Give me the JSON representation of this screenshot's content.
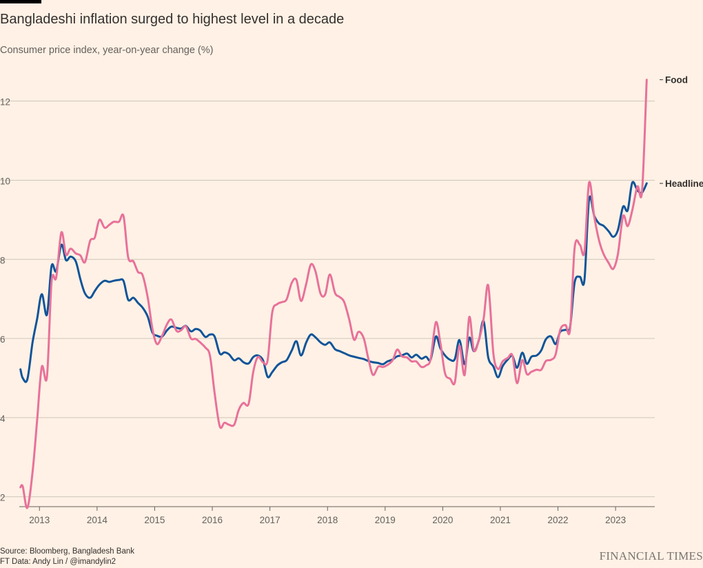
{
  "title": "Bangladeshi inflation surged to highest level in a decade",
  "subtitle": "Consumer price index, year-on-year change (%)",
  "footer": {
    "source": "Source: Bloomberg, Bangladesh Bank",
    "credit": "FT Data: Andy Lin / @imandylin2"
  },
  "brand": "FINANCIAL TIMES",
  "chart_data": {
    "type": "line",
    "title": "Bangladeshi inflation surged to highest level in a decade",
    "subtitle": "Consumer price index, year-on-year change (%)",
    "xlabel": "",
    "ylabel": "",
    "xlim": [
      2012.65,
      2023.68
    ],
    "ylim": [
      1.75,
      12.9
    ],
    "y_ticks": [
      2,
      4,
      6,
      8,
      10,
      12
    ],
    "x_ticks": [
      2013,
      2014,
      2015,
      2016,
      2017,
      2018,
      2019,
      2020,
      2021,
      2022,
      2023
    ],
    "grid": "horizontal",
    "legend": "direct labels at line ends (right)",
    "colors": {
      "Headline": "#0f5499",
      "Food": "#e8719a",
      "grid": "#cec6b9",
      "axis": "#66605c",
      "background": "#fff1e5"
    },
    "series": [
      {
        "name": "Headline",
        "points": [
          [
            2012.67,
            5.22
          ],
          [
            2012.71,
            5.0
          ],
          [
            2012.79,
            4.97
          ],
          [
            2012.88,
            5.9
          ],
          [
            2012.96,
            6.5
          ],
          [
            2013.04,
            7.12
          ],
          [
            2013.13,
            6.6
          ],
          [
            2013.21,
            7.83
          ],
          [
            2013.29,
            7.7
          ],
          [
            2013.38,
            8.37
          ],
          [
            2013.46,
            7.98
          ],
          [
            2013.54,
            8.07
          ],
          [
            2013.63,
            7.95
          ],
          [
            2013.71,
            7.5
          ],
          [
            2013.79,
            7.14
          ],
          [
            2013.88,
            7.03
          ],
          [
            2013.96,
            7.2
          ],
          [
            2014.04,
            7.36
          ],
          [
            2014.13,
            7.46
          ],
          [
            2014.21,
            7.43
          ],
          [
            2014.29,
            7.46
          ],
          [
            2014.38,
            7.48
          ],
          [
            2014.46,
            7.45
          ],
          [
            2014.54,
            6.98
          ],
          [
            2014.63,
            7.03
          ],
          [
            2014.71,
            6.9
          ],
          [
            2014.79,
            6.78
          ],
          [
            2014.88,
            6.55
          ],
          [
            2014.96,
            6.15
          ],
          [
            2015.04,
            6.07
          ],
          [
            2015.13,
            6.05
          ],
          [
            2015.21,
            6.2
          ],
          [
            2015.29,
            6.3
          ],
          [
            2015.38,
            6.27
          ],
          [
            2015.46,
            6.25
          ],
          [
            2015.54,
            6.32
          ],
          [
            2015.63,
            6.18
          ],
          [
            2015.71,
            6.24
          ],
          [
            2015.79,
            6.2
          ],
          [
            2015.88,
            6.04
          ],
          [
            2015.96,
            6.1
          ],
          [
            2016.04,
            6.05
          ],
          [
            2016.13,
            5.62
          ],
          [
            2016.21,
            5.65
          ],
          [
            2016.29,
            5.6
          ],
          [
            2016.38,
            5.45
          ],
          [
            2016.46,
            5.5
          ],
          [
            2016.54,
            5.4
          ],
          [
            2016.63,
            5.37
          ],
          [
            2016.71,
            5.53
          ],
          [
            2016.79,
            5.57
          ],
          [
            2016.88,
            5.45
          ],
          [
            2016.96,
            5.03
          ],
          [
            2017.04,
            5.15
          ],
          [
            2017.13,
            5.32
          ],
          [
            2017.21,
            5.4
          ],
          [
            2017.29,
            5.45
          ],
          [
            2017.38,
            5.7
          ],
          [
            2017.46,
            5.93
          ],
          [
            2017.54,
            5.57
          ],
          [
            2017.63,
            5.9
          ],
          [
            2017.71,
            6.1
          ],
          [
            2017.79,
            6.03
          ],
          [
            2017.88,
            5.9
          ],
          [
            2017.96,
            5.84
          ],
          [
            2018.04,
            5.9
          ],
          [
            2018.13,
            5.73
          ],
          [
            2018.21,
            5.68
          ],
          [
            2018.29,
            5.63
          ],
          [
            2018.38,
            5.57
          ],
          [
            2018.46,
            5.54
          ],
          [
            2018.54,
            5.51
          ],
          [
            2018.63,
            5.48
          ],
          [
            2018.71,
            5.43
          ],
          [
            2018.79,
            5.4
          ],
          [
            2018.88,
            5.38
          ],
          [
            2018.96,
            5.35
          ],
          [
            2019.04,
            5.42
          ],
          [
            2019.13,
            5.47
          ],
          [
            2019.21,
            5.55
          ],
          [
            2019.29,
            5.57
          ],
          [
            2019.38,
            5.62
          ],
          [
            2019.46,
            5.52
          ],
          [
            2019.54,
            5.59
          ],
          [
            2019.63,
            5.49
          ],
          [
            2019.71,
            5.54
          ],
          [
            2019.79,
            5.47
          ],
          [
            2019.88,
            6.05
          ],
          [
            2019.96,
            5.75
          ],
          [
            2020.04,
            5.57
          ],
          [
            2020.13,
            5.46
          ],
          [
            2020.21,
            5.48
          ],
          [
            2020.29,
            5.96
          ],
          [
            2020.38,
            5.35
          ],
          [
            2020.46,
            6.02
          ],
          [
            2020.54,
            5.68
          ],
          [
            2020.63,
            5.97
          ],
          [
            2020.71,
            6.44
          ],
          [
            2020.79,
            5.52
          ],
          [
            2020.88,
            5.29
          ],
          [
            2020.96,
            5.02
          ],
          [
            2021.04,
            5.3
          ],
          [
            2021.13,
            5.47
          ],
          [
            2021.21,
            5.56
          ],
          [
            2021.29,
            5.26
          ],
          [
            2021.38,
            5.64
          ],
          [
            2021.46,
            5.36
          ],
          [
            2021.54,
            5.54
          ],
          [
            2021.63,
            5.57
          ],
          [
            2021.71,
            5.7
          ],
          [
            2021.79,
            5.98
          ],
          [
            2021.88,
            6.05
          ],
          [
            2021.96,
            5.86
          ],
          [
            2022.04,
            6.17
          ],
          [
            2022.13,
            6.22
          ],
          [
            2022.21,
            6.29
          ],
          [
            2022.29,
            7.42
          ],
          [
            2022.38,
            7.56
          ],
          [
            2022.46,
            7.48
          ],
          [
            2022.54,
            9.52
          ],
          [
            2022.63,
            9.1
          ],
          [
            2022.71,
            8.91
          ],
          [
            2022.79,
            8.85
          ],
          [
            2022.88,
            8.71
          ],
          [
            2022.96,
            8.57
          ],
          [
            2023.04,
            8.74
          ],
          [
            2023.13,
            9.33
          ],
          [
            2023.21,
            9.24
          ],
          [
            2023.29,
            9.94
          ],
          [
            2023.38,
            9.74
          ],
          [
            2023.46,
            9.69
          ],
          [
            2023.54,
            9.92
          ]
        ]
      },
      {
        "name": "Food",
        "points": [
          [
            2012.67,
            2.24
          ],
          [
            2012.71,
            2.26
          ],
          [
            2012.79,
            1.72
          ],
          [
            2012.88,
            2.62
          ],
          [
            2012.96,
            3.94
          ],
          [
            2013.04,
            5.28
          ],
          [
            2013.13,
            5.03
          ],
          [
            2013.21,
            7.44
          ],
          [
            2013.29,
            7.54
          ],
          [
            2013.38,
            8.68
          ],
          [
            2013.46,
            8.12
          ],
          [
            2013.54,
            8.27
          ],
          [
            2013.63,
            8.15
          ],
          [
            2013.71,
            8.1
          ],
          [
            2013.79,
            7.93
          ],
          [
            2013.88,
            8.47
          ],
          [
            2013.96,
            8.55
          ],
          [
            2014.04,
            9.0
          ],
          [
            2014.13,
            8.8
          ],
          [
            2014.21,
            8.87
          ],
          [
            2014.29,
            8.95
          ],
          [
            2014.38,
            8.95
          ],
          [
            2014.46,
            9.09
          ],
          [
            2014.54,
            8.05
          ],
          [
            2014.63,
            7.95
          ],
          [
            2014.71,
            7.68
          ],
          [
            2014.79,
            7.6
          ],
          [
            2014.88,
            7.03
          ],
          [
            2014.96,
            6.25
          ],
          [
            2015.04,
            5.86
          ],
          [
            2015.13,
            6.07
          ],
          [
            2015.21,
            6.35
          ],
          [
            2015.29,
            6.48
          ],
          [
            2015.38,
            6.19
          ],
          [
            2015.46,
            6.21
          ],
          [
            2015.54,
            6.31
          ],
          [
            2015.63,
            6.0
          ],
          [
            2015.71,
            5.99
          ],
          [
            2015.79,
            5.9
          ],
          [
            2015.88,
            5.77
          ],
          [
            2015.96,
            5.56
          ],
          [
            2016.04,
            4.62
          ],
          [
            2016.13,
            3.78
          ],
          [
            2016.21,
            3.87
          ],
          [
            2016.29,
            3.82
          ],
          [
            2016.38,
            3.82
          ],
          [
            2016.46,
            4.2
          ],
          [
            2016.54,
            4.37
          ],
          [
            2016.63,
            4.35
          ],
          [
            2016.71,
            5.15
          ],
          [
            2016.79,
            5.53
          ],
          [
            2016.88,
            5.4
          ],
          [
            2016.96,
            5.45
          ],
          [
            2017.04,
            6.66
          ],
          [
            2017.13,
            6.87
          ],
          [
            2017.21,
            6.92
          ],
          [
            2017.29,
            6.99
          ],
          [
            2017.38,
            7.41
          ],
          [
            2017.46,
            7.48
          ],
          [
            2017.54,
            6.95
          ],
          [
            2017.63,
            7.38
          ],
          [
            2017.71,
            7.87
          ],
          [
            2017.79,
            7.7
          ],
          [
            2017.88,
            7.13
          ],
          [
            2017.96,
            7.12
          ],
          [
            2018.04,
            7.62
          ],
          [
            2018.13,
            7.15
          ],
          [
            2018.21,
            7.05
          ],
          [
            2018.29,
            6.92
          ],
          [
            2018.38,
            6.46
          ],
          [
            2018.46,
            5.97
          ],
          [
            2018.54,
            6.17
          ],
          [
            2018.63,
            6.0
          ],
          [
            2018.71,
            5.48
          ],
          [
            2018.79,
            5.08
          ],
          [
            2018.88,
            5.29
          ],
          [
            2018.96,
            5.28
          ],
          [
            2019.04,
            5.33
          ],
          [
            2019.13,
            5.45
          ],
          [
            2019.21,
            5.72
          ],
          [
            2019.29,
            5.55
          ],
          [
            2019.38,
            5.52
          ],
          [
            2019.46,
            5.42
          ],
          [
            2019.54,
            5.42
          ],
          [
            2019.63,
            5.28
          ],
          [
            2019.71,
            5.32
          ],
          [
            2019.79,
            5.48
          ],
          [
            2019.88,
            6.41
          ],
          [
            2019.96,
            5.88
          ],
          [
            2020.04,
            5.12
          ],
          [
            2020.13,
            4.98
          ],
          [
            2020.21,
            4.89
          ],
          [
            2020.29,
            5.82
          ],
          [
            2020.38,
            5.08
          ],
          [
            2020.46,
            6.54
          ],
          [
            2020.54,
            5.7
          ],
          [
            2020.63,
            5.98
          ],
          [
            2020.71,
            6.5
          ],
          [
            2020.79,
            7.34
          ],
          [
            2020.88,
            5.61
          ],
          [
            2020.96,
            5.23
          ],
          [
            2021.04,
            5.42
          ],
          [
            2021.13,
            5.51
          ],
          [
            2021.21,
            5.57
          ],
          [
            2021.29,
            4.87
          ],
          [
            2021.38,
            5.45
          ],
          [
            2021.46,
            5.1
          ],
          [
            2021.54,
            5.16
          ],
          [
            2021.63,
            5.21
          ],
          [
            2021.71,
            5.21
          ],
          [
            2021.79,
            5.43
          ],
          [
            2021.88,
            5.46
          ],
          [
            2021.96,
            5.6
          ],
          [
            2022.04,
            6.22
          ],
          [
            2022.13,
            6.34
          ],
          [
            2022.21,
            6.23
          ],
          [
            2022.29,
            8.3
          ],
          [
            2022.38,
            8.37
          ],
          [
            2022.46,
            8.19
          ],
          [
            2022.54,
            9.94
          ],
          [
            2022.63,
            9.08
          ],
          [
            2022.71,
            8.5
          ],
          [
            2022.79,
            8.14
          ],
          [
            2022.88,
            7.91
          ],
          [
            2022.96,
            7.76
          ],
          [
            2023.04,
            8.13
          ],
          [
            2023.13,
            9.09
          ],
          [
            2023.21,
            8.84
          ],
          [
            2023.29,
            9.24
          ],
          [
            2023.38,
            9.84
          ],
          [
            2023.46,
            9.73
          ],
          [
            2023.54,
            12.54
          ]
        ]
      }
    ]
  }
}
